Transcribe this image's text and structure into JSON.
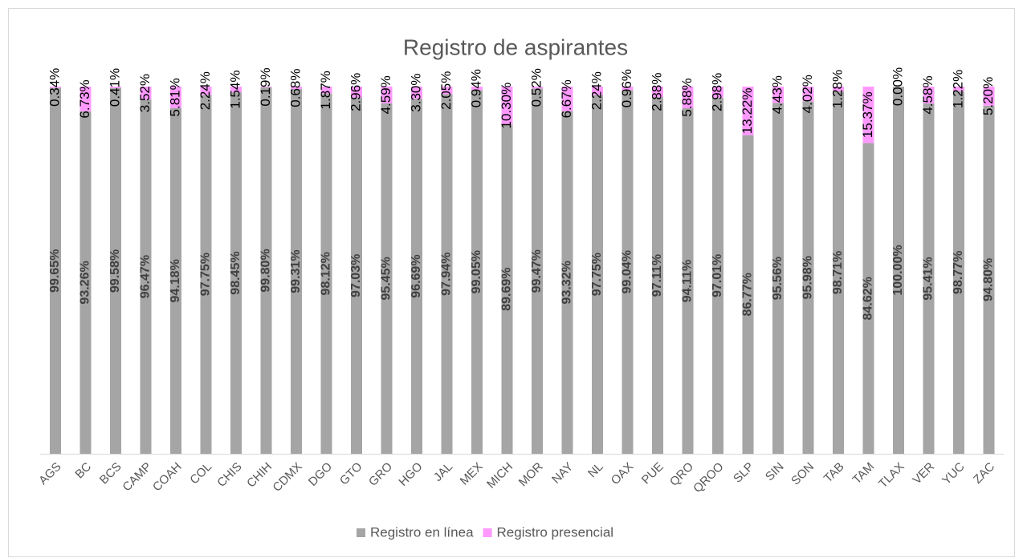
{
  "chart_data": {
    "type": "stacked_bar",
    "title": "Registro de aspirantes",
    "categories": [
      "AGS",
      "BC",
      "BCS",
      "CAMP",
      "COAH",
      "COL",
      "CHIS",
      "CHIH",
      "CDMX",
      "DGO",
      "GTO",
      "GRO",
      "HGO",
      "JAL",
      "MEX",
      "MICH",
      "MOR",
      "NAY",
      "NL",
      "OAX",
      "PUE",
      "QRO",
      "QROO",
      "SLP",
      "SIN",
      "SON",
      "TAB",
      "TAM",
      "TLAX",
      "VER",
      "YUC",
      "ZAC"
    ],
    "ylim": [
      0,
      100
    ],
    "legend": "bottom",
    "series": [
      {
        "name": "Registro en línea",
        "color": "#a5a5a5",
        "values": [
          99.65,
          93.26,
          99.58,
          96.47,
          94.18,
          97.75,
          98.45,
          99.8,
          99.31,
          98.12,
          97.03,
          95.45,
          96.69,
          97.94,
          99.05,
          89.69,
          99.47,
          93.32,
          97.75,
          99.04,
          97.11,
          94.11,
          97.01,
          86.77,
          95.56,
          95.98,
          98.71,
          84.62,
          100.0,
          95.41,
          98.77,
          94.8
        ],
        "value_labels": [
          "99.65%",
          "93.26%",
          "99.58%",
          "96.47%",
          "94.18%",
          "97.75%",
          "98.45%",
          "99.80%",
          "99.31%",
          "98.12%",
          "97.03%",
          "95.45%",
          "96.69%",
          "97.94%",
          "99.05%",
          "89.69%",
          "99.47%",
          "93.32%",
          "97.75%",
          "99.04%",
          "97.11%",
          "94.11%",
          "97.01%",
          "86.77%",
          "95.56%",
          "95.98%",
          "98.71%",
          "84.62%",
          "100.00%",
          "95.41%",
          "98.77%",
          "94.80%"
        ]
      },
      {
        "name": "Registro presencial",
        "color": "#ff99ff",
        "values": [
          0.34,
          6.73,
          0.41,
          3.52,
          5.81,
          2.24,
          1.54,
          0.19,
          0.68,
          1.87,
          2.96,
          4.59,
          3.3,
          2.05,
          0.94,
          10.3,
          0.52,
          6.67,
          2.24,
          0.96,
          2.88,
          5.88,
          2.98,
          13.22,
          4.43,
          4.02,
          1.28,
          15.37,
          0.0,
          4.58,
          1.22,
          5.2
        ],
        "value_labels": [
          "0.34%",
          "6.73%",
          "0.41%",
          "3.52%",
          "5.81%",
          "2.24%",
          "1.54%",
          "0.19%",
          "0.68%",
          "1.87%",
          "2.96%",
          "4.59%",
          "3.30%",
          "2.05%",
          "0.94%",
          "10.30%",
          "0.52%",
          "6.67%",
          "2.24%",
          "0.96%",
          "2.88%",
          "5.88%",
          "2.98%",
          "13.22%",
          "4.43%",
          "4.02%",
          "1.28%",
          "15.37%",
          "0.00%",
          "4.58%",
          "1.22%",
          "5.20%"
        ]
      }
    ]
  }
}
